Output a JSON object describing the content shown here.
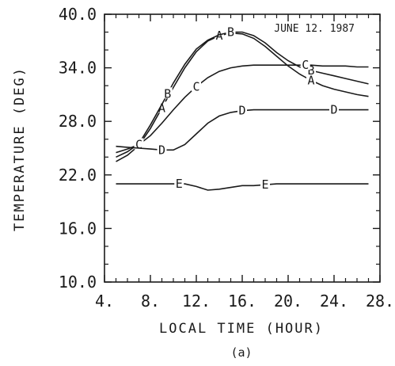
{
  "chart_data": {
    "type": "line",
    "annotation": "JUNE 12. 1987",
    "xlabel": "LOCAL TIME (HOUR)",
    "ylabel": "TEMPERATURE (DEG)",
    "caption": "(a)",
    "xlim": [
      4,
      28
    ],
    "ylim": [
      10,
      40
    ],
    "x_ticks": [
      4,
      8,
      12,
      16,
      20,
      24,
      28
    ],
    "x_tick_labels": [
      "4.",
      "8.",
      "12.",
      "16.",
      "20.",
      "24.",
      "28."
    ],
    "y_ticks": [
      10,
      16,
      22,
      28,
      34,
      40
    ],
    "y_tick_labels": [
      "10.0",
      "16.0",
      "22.0",
      "28.0",
      "34.0",
      "40.0"
    ],
    "grid": false,
    "series": [
      {
        "marker": "A",
        "x": [
          5,
          6,
          7,
          8,
          9,
          10,
          11,
          12,
          13,
          14,
          15,
          16,
          17,
          18,
          19,
          20,
          21,
          22,
          23,
          24,
          25,
          26,
          27
        ],
        "y": [
          23.5,
          24.2,
          25.3,
          27.2,
          29.5,
          31.8,
          34.0,
          35.8,
          37.0,
          37.6,
          37.9,
          37.8,
          37.3,
          36.4,
          35.3,
          34.2,
          33.3,
          32.6,
          32.0,
          31.6,
          31.3,
          31.0,
          30.8
        ],
        "marker_x": [
          9,
          14,
          22
        ]
      },
      {
        "marker": "B",
        "x": [
          5,
          6,
          7,
          8,
          9,
          10,
          11,
          12,
          13,
          14,
          15,
          16,
          17,
          18,
          19,
          20,
          21,
          22,
          23,
          24,
          25,
          26,
          27
        ],
        "y": [
          24.0,
          24.6,
          25.5,
          27.6,
          29.9,
          32.3,
          34.4,
          36.1,
          37.1,
          37.7,
          38.0,
          38.0,
          37.6,
          36.8,
          35.7,
          34.8,
          34.1,
          33.7,
          33.4,
          33.1,
          32.8,
          32.5,
          32.2
        ],
        "marker_x": [
          9.5,
          15,
          22
        ]
      },
      {
        "marker": "C",
        "x": [
          5,
          6,
          7,
          8,
          9,
          10,
          11,
          12,
          13,
          14,
          15,
          16,
          17,
          18,
          19,
          20,
          21,
          22,
          23,
          24,
          25,
          26,
          27
        ],
        "y": [
          24.5,
          24.9,
          25.4,
          26.4,
          27.8,
          29.3,
          30.7,
          31.9,
          32.9,
          33.6,
          34.0,
          34.2,
          34.3,
          34.3,
          34.3,
          34.3,
          34.3,
          34.3,
          34.2,
          34.2,
          34.2,
          34.1,
          34.1
        ],
        "marker_x": [
          7,
          12,
          21.5
        ]
      },
      {
        "marker": "D",
        "x": [
          5,
          6,
          7,
          8,
          9,
          10,
          11,
          12,
          13,
          14,
          15,
          16,
          17,
          18,
          19,
          20,
          21,
          22,
          23,
          24,
          25,
          26,
          27
        ],
        "y": [
          25.2,
          25.1,
          25.0,
          24.9,
          24.8,
          24.8,
          25.4,
          26.6,
          27.8,
          28.6,
          29.0,
          29.2,
          29.3,
          29.3,
          29.3,
          29.3,
          29.3,
          29.3,
          29.3,
          29.3,
          29.3,
          29.3,
          29.3
        ],
        "marker_x": [
          9,
          16,
          24
        ]
      },
      {
        "marker": "E",
        "x": [
          5,
          6,
          7,
          8,
          9,
          10,
          11,
          12,
          13,
          14,
          15,
          16,
          17,
          18,
          19,
          20,
          21,
          22,
          23,
          24,
          25,
          26,
          27
        ],
        "y": [
          21.0,
          21.0,
          21.0,
          21.0,
          21.0,
          21.0,
          21.0,
          20.7,
          20.3,
          20.4,
          20.6,
          20.8,
          20.8,
          20.9,
          21.0,
          21.0,
          21.0,
          21.0,
          21.0,
          21.0,
          21.0,
          21.0,
          21.0
        ],
        "marker_x": [
          10.5,
          18
        ]
      }
    ]
  }
}
